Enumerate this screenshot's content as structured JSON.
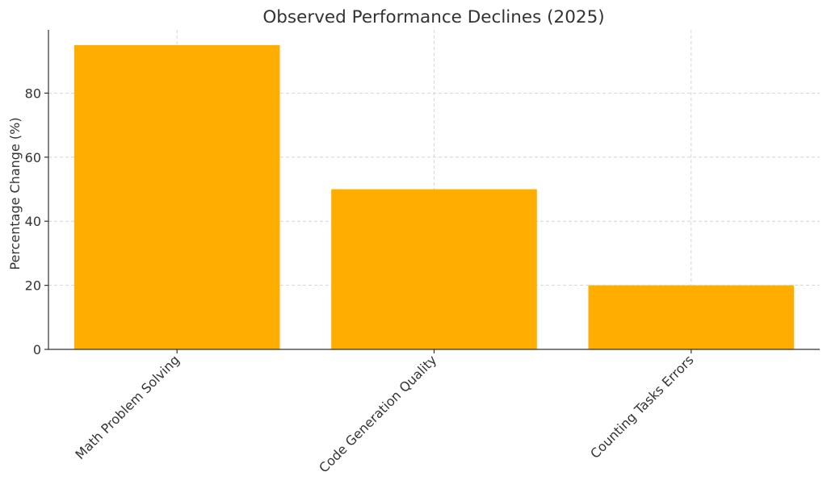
{
  "chart_data": {
    "type": "bar",
    "title": "Observed Performance Declines (2025)",
    "xlabel": "",
    "ylabel": "Percentage Change (%)",
    "categories": [
      "Math Problem Solving",
      "Code Generation Quality",
      "Counting Tasks Errors"
    ],
    "values": [
      95,
      50,
      20
    ],
    "ylim": [
      0,
      99.75
    ],
    "yticks": [
      0,
      20,
      40,
      60,
      80
    ],
    "grid": true,
    "legend": "none",
    "colors": {
      "bar": "#FFAE00",
      "text": "#333333",
      "grid": "#cccccc",
      "axis": "#333333"
    }
  }
}
